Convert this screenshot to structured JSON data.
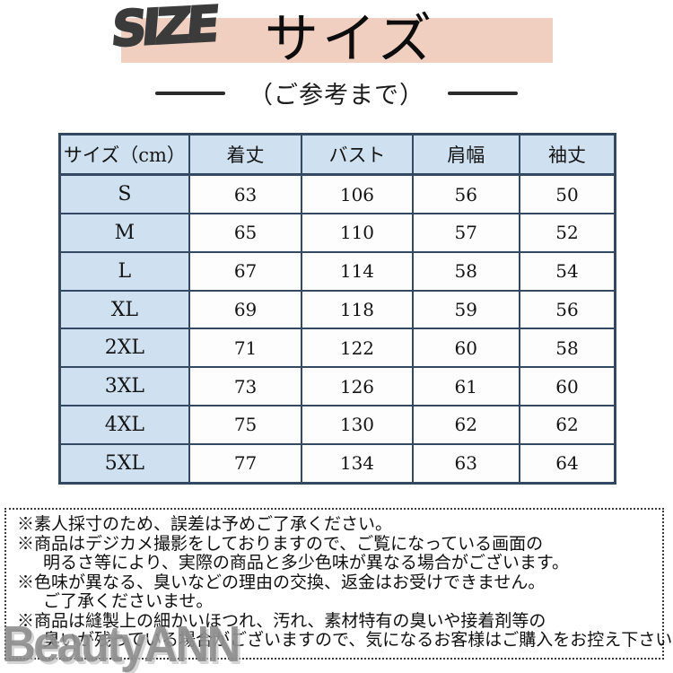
{
  "header": {
    "logo_text": "SIZE",
    "title": "サイズ",
    "subtitle": "（ご参考まで）"
  },
  "size_table": {
    "columns": [
      "サイズ（cm）",
      "着丈",
      "バスト",
      "肩幅",
      "袖丈"
    ],
    "rows": [
      {
        "size": "S",
        "values": [
          "63",
          "106",
          "56",
          "50"
        ]
      },
      {
        "size": "M",
        "values": [
          "65",
          "110",
          "57",
          "52"
        ]
      },
      {
        "size": "L",
        "values": [
          "67",
          "114",
          "58",
          "54"
        ]
      },
      {
        "size": "XL",
        "values": [
          "69",
          "118",
          "59",
          "56"
        ]
      },
      {
        "size": "2XL",
        "values": [
          "71",
          "122",
          "60",
          "58"
        ]
      },
      {
        "size": "3XL",
        "values": [
          "73",
          "126",
          "61",
          "60"
        ]
      },
      {
        "size": "4XL",
        "values": [
          "75",
          "130",
          "62",
          "62"
        ]
      },
      {
        "size": "5XL",
        "values": [
          "77",
          "134",
          "63",
          "64"
        ]
      }
    ]
  },
  "notes": {
    "lines": [
      {
        "text": "※素人採寸のため、誤差は予めご了承ください。",
        "indent": false
      },
      {
        "text": "※商品はデジカメ撮影をしておりますので、ご覧になっている画面の",
        "indent": false
      },
      {
        "text": "明るさ等により、実際の商品と多少色味が異なる場合がございます。",
        "indent": true
      },
      {
        "text": "※色味が異なる、臭いなどの理由の交換、返金はお受けできません。",
        "indent": false
      },
      {
        "text": "ご了承くださいませ。",
        "indent": true
      },
      {
        "text": "※商品は縫製上の細かいほつれ、汚れ、素材特有の臭いや接着剤等の",
        "indent": false
      },
      {
        "text": "臭いが残っている場合がございますので、気になるお客様はご購入をお控え下さい。",
        "indent": true
      }
    ]
  },
  "watermark": "BeautyANN",
  "colors": {
    "banner_pink": "#f0cfc1",
    "cell_blue": "#cfe1f1",
    "table_border": "#334962",
    "logo_gray": "#3b3b3b",
    "watermark_gray": "#888888"
  }
}
